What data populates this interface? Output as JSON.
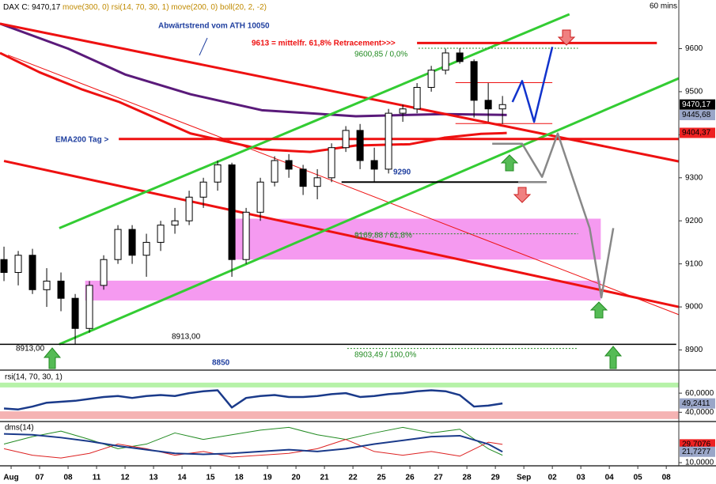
{
  "chart_data": [
    {
      "type": "candlestick",
      "header": [
        {
          "text": "DAX C: 9470,17",
          "color": "#000000"
        },
        {
          "text": "move(300, 0)",
          "color": "#c08a00"
        },
        {
          "text": "rsi(14, 70, 30, 1)",
          "color": "#c08a00"
        },
        {
          "text": "move(200, 0)",
          "color": "#c08a00"
        },
        {
          "text": "boll(20, 2, -2)",
          "color": "#c08a00"
        }
      ],
      "timeframe": "60 mins",
      "xlim": [
        -0.39,
        23.44
      ],
      "ylim": [
        8855,
        9713
      ],
      "xticks": [
        {
          "value": 0,
          "label": "Aug"
        },
        {
          "value": 1,
          "label": "07"
        },
        {
          "value": 2,
          "label": "08"
        },
        {
          "value": 3,
          "label": "11"
        },
        {
          "value": 4,
          "label": "12"
        },
        {
          "value": 5,
          "label": "13"
        },
        {
          "value": 6,
          "label": "14"
        },
        {
          "value": 7,
          "label": "15"
        },
        {
          "value": 8,
          "label": "18"
        },
        {
          "value": 9,
          "label": "19"
        },
        {
          "value": 10,
          "label": "20"
        },
        {
          "value": 11,
          "label": "21"
        },
        {
          "value": 12,
          "label": "22"
        },
        {
          "value": 13,
          "label": "25"
        },
        {
          "value": 14,
          "label": "26"
        },
        {
          "value": 15,
          "label": "27"
        },
        {
          "value": 16,
          "label": "28"
        },
        {
          "value": 17,
          "label": "29"
        },
        {
          "value": 18,
          "label": "Sep"
        },
        {
          "value": 19,
          "label": "02"
        },
        {
          "value": 20,
          "label": "03"
        },
        {
          "value": 21,
          "label": "04"
        },
        {
          "value": 22,
          "label": "05"
        },
        {
          "value": 23,
          "label": "08"
        }
      ],
      "yticks": [
        8900,
        9000,
        9100,
        9200,
        9300,
        9400,
        9500,
        9600
      ],
      "up_color": "#ffffff",
      "down_color": "#000000",
      "x": [
        -0.25,
        0.25,
        0.75,
        1.25,
        1.75,
        2.25,
        2.75,
        3.25,
        3.75,
        4.25,
        4.75,
        5.25,
        5.75,
        6.25,
        6.75,
        7.25,
        7.75,
        8.25,
        8.75,
        9.25,
        9.75,
        10.25,
        10.75,
        11.25,
        11.75,
        12.25,
        12.75,
        13.25,
        13.75,
        14.25,
        14.75,
        15.25,
        15.75,
        16.25,
        16.75,
        17.25
      ],
      "open": [
        9110,
        9080,
        9120,
        9040,
        9060,
        9020,
        8950,
        9050,
        9110,
        9180,
        9120,
        9150,
        9190,
        9200,
        9255,
        9290,
        9330,
        9110,
        9220,
        9290,
        9340,
        9320,
        9280,
        9300,
        9370,
        9410,
        9340,
        9320,
        9450,
        9460,
        9510,
        9550,
        9590,
        9570,
        9480,
        9460
      ],
      "high": [
        9140,
        9130,
        9135,
        9090,
        9080,
        9030,
        9060,
        9120,
        9190,
        9190,
        9170,
        9200,
        9230,
        9270,
        9300,
        9340,
        9335,
        9230,
        9300,
        9350,
        9355,
        9330,
        9320,
        9380,
        9420,
        9425,
        9370,
        9460,
        9470,
        9520,
        9560,
        9600,
        9601,
        9575,
        9520,
        9490
      ],
      "low": [
        9060,
        9050,
        9030,
        9000,
        8990,
        8913,
        8940,
        9040,
        9100,
        9100,
        9070,
        9130,
        9170,
        9190,
        9230,
        9270,
        9070,
        9100,
        9200,
        9280,
        9300,
        9260,
        9250,
        9290,
        9360,
        9320,
        9290,
        9310,
        9430,
        9450,
        9500,
        9540,
        9565,
        9440,
        9430,
        9425
      ],
      "close": [
        9080,
        9120,
        9040,
        9060,
        9020,
        8950,
        9050,
        9110,
        9180,
        9120,
        9150,
        9190,
        9200,
        9255,
        9290,
        9330,
        9110,
        9220,
        9290,
        9340,
        9320,
        9280,
        9300,
        9370,
        9410,
        9340,
        9320,
        9450,
        9460,
        9510,
        9550,
        9590,
        9570,
        9480,
        9460,
        9470
      ],
      "zones": [
        {
          "color": "#f59af0",
          "x": [
            7.75,
            20.7
          ],
          "values": [
            9110,
            9205
          ]
        },
        {
          "color": "#f59af0",
          "x": [
            2.6,
            20.7
          ],
          "values": [
            9015,
            9061
          ]
        }
      ],
      "lines": [
        {
          "color": "#5a1a7a",
          "width": 3,
          "x": [
            -0.39,
            2,
            4,
            6.3,
            8.8,
            12.1,
            15.2,
            17.4
          ],
          "values": [
            9658,
            9600,
            9540,
            9494,
            9457,
            9443,
            9448,
            9446
          ]
        },
        {
          "color": "#ee1111",
          "width": 3,
          "x": [
            -0.39,
            1,
            2.5,
            3.8,
            6.3,
            8.8,
            10.5,
            12.1,
            14,
            15.2,
            16.5,
            17.4
          ],
          "values": [
            9590,
            9545,
            9505,
            9476,
            9403,
            9366,
            9360,
            9375,
            9378,
            9393,
            9402,
            9404
          ]
        },
        {
          "color": "#ee1111",
          "width": 3,
          "x": [
            -0.39,
            23.44
          ],
          "values": [
            9658,
            9338
          ]
        },
        {
          "color": "#ee1111",
          "width": 1,
          "x": [
            -0.11,
            23.44
          ],
          "values": [
            9585,
            8982
          ]
        },
        {
          "color": "#ee1111",
          "width": 3,
          "x": [
            -0.25,
            23.44
          ],
          "values": [
            9339,
            9000
          ]
        },
        {
          "color": "#33cc33",
          "width": 3,
          "x": [
            1.69,
            19.6
          ],
          "values": [
            9183,
            9680
          ]
        },
        {
          "color": "#33cc33",
          "width": 3,
          "x": [
            1.69,
            23.44
          ],
          "values": [
            8913,
            9531
          ]
        },
        {
          "color": "#ee1111",
          "width": 3,
          "x": [
            14.25,
            22.67
          ],
          "values": [
            9613,
            9613
          ]
        },
        {
          "color": "#ee1111",
          "width": 3,
          "x": [
            3.78,
            23.44
          ],
          "values": [
            9390,
            9390
          ]
        },
        {
          "color": "#000000",
          "width": 2,
          "x": [
            11.6,
            18.8
          ],
          "values": [
            9290,
            9290
          ]
        },
        {
          "color": "#000000",
          "width": 1.5,
          "x": [
            -0.39,
            23.35
          ],
          "values": [
            8913,
            8913
          ]
        },
        {
          "color": "#228b22",
          "width": 1,
          "dash": true,
          "x": [
            14.3,
            19.9
          ],
          "values": [
            9600.85,
            9600.85
          ]
        },
        {
          "color": "#228b22",
          "width": 1,
          "dash": true,
          "x": [
            12.1,
            19.9
          ],
          "values": [
            9169.88,
            9169.88
          ]
        },
        {
          "color": "#228b22",
          "width": 1,
          "dash": true,
          "x": [
            11.8,
            19.9
          ],
          "values": [
            8903.49,
            8903.49
          ]
        },
        {
          "color": "#ee1111",
          "width": 1,
          "x": [
            15.6,
            19.0
          ],
          "values": [
            9521,
            9521
          ]
        },
        {
          "color": "#ee1111",
          "width": 1,
          "x": [
            15.6,
            19.0
          ],
          "values": [
            9426,
            9426
          ]
        },
        {
          "color": "#1133cc",
          "width": 2.5,
          "x": [
            17.6,
            17.94,
            18.36,
            19
          ],
          "values": [
            9476,
            9525,
            9430,
            9604
          ]
        },
        {
          "color": "#888888",
          "width": 2.5,
          "x": [
            16.89,
            17.94,
            18.64,
            19.19,
            20.31,
            20.72,
            21.14
          ],
          "values": [
            9379,
            9379,
            9302,
            9403,
            9183,
            9022,
            9183
          ]
        },
        {
          "color": "#888888",
          "width": 2,
          "x": [
            17.8,
            18.8
          ],
          "values": [
            9290,
            9290
          ]
        }
      ],
      "price_labels": [
        {
          "value": 9470.17,
          "label": "9470,17",
          "color": "#000000",
          "text_color": "#ffffff"
        },
        {
          "value": 9445.68,
          "label": "9445,68",
          "color": "#9aa6c8",
          "text_color": "#000000"
        },
        {
          "value": 9404.37,
          "label": "9404,37",
          "color": "#ee2222",
          "text_color": "#000000"
        }
      ],
      "annotations": [
        {
          "text": "Abwärtstrend vom ATH 10050",
          "color": "#1f3f9f"
        },
        {
          "text": "9613 = mittelfr. 61,8% Retracement>>>",
          "color": "#ee1111"
        },
        {
          "text": "9600,85 / 0,0%",
          "color": "#228b22"
        },
        {
          "text": "EMA200 Tag >",
          "color": "#1f3f9f"
        },
        {
          "text": "9290",
          "color": "#1f3f9f"
        },
        {
          "text": "9169,88 / 61,8%",
          "color": "#228b22"
        },
        {
          "text": "8913,00",
          "color": "#000000"
        },
        {
          "text": "8913,00",
          "color": "#000000"
        },
        {
          "text": "8850",
          "color": "#1f3f9f"
        },
        {
          "text": "8903,49 / 100,0%",
          "color": "#228b22"
        }
      ]
    },
    {
      "type": "line",
      "title": "rsi(14, 70, 30, 1)",
      "xlim": [
        -0.39,
        23.44
      ],
      "ylim": [
        32,
        81.6
      ],
      "yticks": [
        {
          "value": 60,
          "label": "60,0000"
        },
        {
          "value": 40,
          "label": "40,0000"
        }
      ],
      "bands": [
        {
          "color": "#b6f2a8",
          "values": [
            66,
            71
          ]
        },
        {
          "color": "#f5b3b3",
          "values": [
            33,
            41
          ]
        }
      ],
      "x": [
        -0.25,
        0.25,
        0.75,
        1.25,
        1.75,
        2.25,
        2.75,
        3.25,
        3.75,
        4.25,
        4.75,
        5.25,
        5.75,
        6.25,
        6.75,
        7.25,
        7.75,
        8.25,
        8.75,
        9.25,
        9.75,
        10.25,
        10.75,
        11.25,
        11.75,
        12.25,
        12.75,
        13.25,
        13.75,
        14.25,
        14.75,
        15.25,
        15.75,
        16.25,
        16.75,
        17.25
      ],
      "series": [
        {
          "color": "#1a3a8a",
          "width": 2.5,
          "values": [
            44,
            43,
            46,
            50,
            51,
            52,
            54,
            56,
            57,
            55,
            57,
            58,
            57,
            60,
            62,
            63,
            45,
            55,
            57,
            58,
            56,
            56,
            57,
            59,
            60,
            56,
            57,
            59,
            60,
            62,
            63,
            62,
            58,
            46,
            47,
            49.24
          ]
        }
      ],
      "price_labels": [
        {
          "value": 49.2411,
          "label": "49,2411",
          "color": "#9aa6c8",
          "text_color": "#000000"
        }
      ]
    },
    {
      "type": "line",
      "title": "dms(14)",
      "xlim": [
        -0.39,
        23.44
      ],
      "ylim": [
        8.3,
        52.6
      ],
      "yticks": [
        {
          "value": 10,
          "label": "10,0000"
        }
      ],
      "x": [
        -0.25,
        0.75,
        1.75,
        2.75,
        3.75,
        4.75,
        5.75,
        6.75,
        7.75,
        8.75,
        9.75,
        10.75,
        11.75,
        12.75,
        13.75,
        14.75,
        15.75,
        16.75,
        17.25
      ],
      "series": [
        {
          "color": "#228b22",
          "width": 1,
          "values": [
            30,
            38,
            44,
            35,
            25,
            30,
            42,
            35,
            40,
            45,
            48,
            40,
            35,
            42,
            48,
            42,
            46,
            25,
            18
          ]
        },
        {
          "color": "#dd2222",
          "width": 1,
          "values": [
            25,
            18,
            15,
            20,
            30,
            25,
            18,
            22,
            16,
            18,
            20,
            25,
            35,
            22,
            18,
            22,
            17,
            32,
            29.71
          ]
        },
        {
          "color": "#1a3a8a",
          "width": 2,
          "values": [
            41,
            40,
            37,
            33,
            28,
            24,
            20,
            19,
            20,
            22,
            24,
            22,
            25,
            30,
            34,
            38,
            39,
            30,
            21.73
          ]
        }
      ],
      "price_labels": [
        {
          "value": 29.7076,
          "label": "29,7076",
          "color": "#ee2222",
          "text_color": "#000000"
        },
        {
          "value": 21.7277,
          "label": "21,7277",
          "color": "#9aa6c8",
          "text_color": "#000000"
        }
      ]
    }
  ]
}
